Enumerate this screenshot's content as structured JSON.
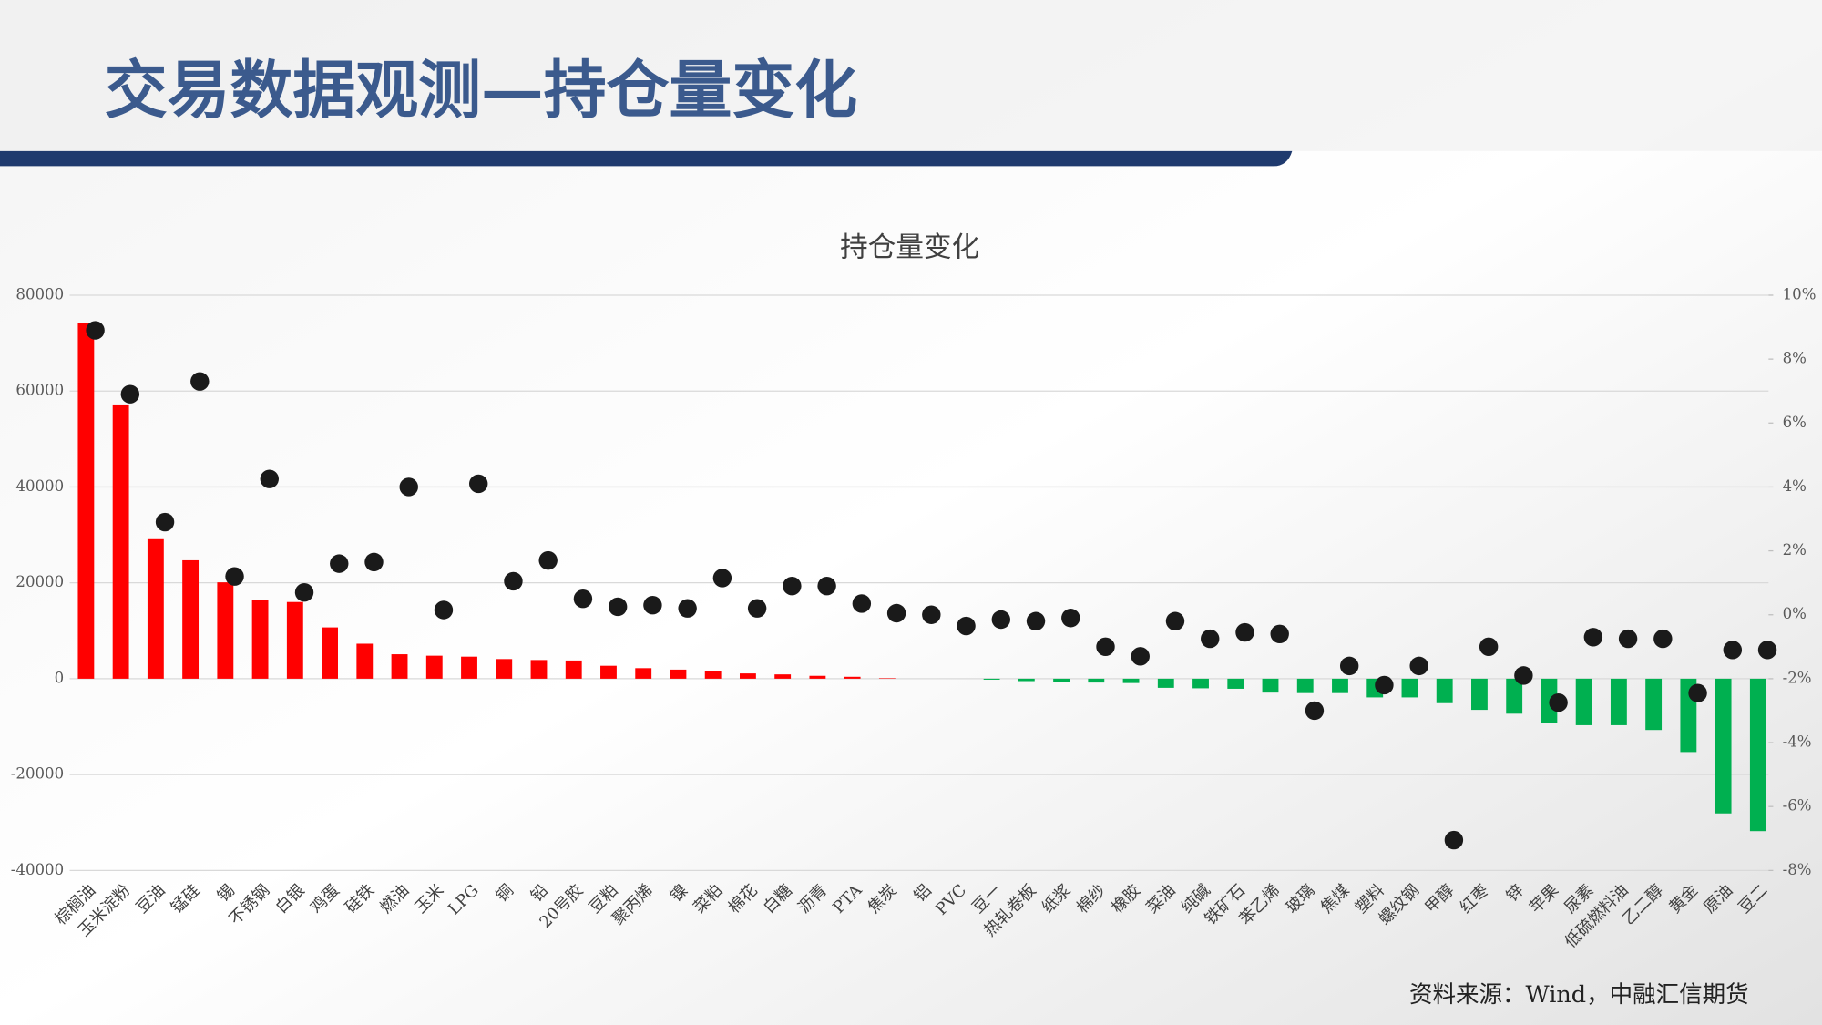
{
  "header": {
    "title": "交易数据观测—持仓量变化"
  },
  "chart_data": {
    "type": "bar-dot",
    "title": "持仓量变化",
    "categories": [
      "棕榈油",
      "玉米淀粉",
      "豆油",
      "锰硅",
      "锡",
      "不锈钢",
      "白银",
      "鸡蛋",
      "硅铁",
      "燃油",
      "玉米",
      "LPG",
      "铜",
      "铅",
      "20号胶",
      "豆粕",
      "聚丙烯",
      "镍",
      "菜粕",
      "棉花",
      "白糖",
      "沥青",
      "PTA",
      "焦炭",
      "铝",
      "PVC",
      "豆一",
      "热轧卷板",
      "纸浆",
      "棉纱",
      "橡胶",
      "菜油",
      "纯碱",
      "铁矿石",
      "苯乙烯",
      "玻璃",
      "焦煤",
      "塑料",
      "螺纹钢",
      "甲醇",
      "红枣",
      "锌",
      "苹果",
      "尿素",
      "低硫燃料油",
      "乙二醇",
      "黄金",
      "原油",
      "豆二"
    ],
    "series": [
      {
        "type": "bar",
        "color": "#ff0000",
        "negative_color": "#00b050",
        "values": [
          74200,
          57200,
          29100,
          24700,
          20100,
          16500,
          16000,
          10700,
          7300,
          5100,
          4800,
          4600,
          4100,
          3900,
          3800,
          2700,
          2200,
          1900,
          1500,
          1100,
          900,
          600,
          400,
          100,
          0,
          0,
          -200,
          -500,
          -700,
          -800,
          -900,
          -1900,
          -2000,
          -2100,
          -2900,
          -3000,
          -3000,
          -3900,
          -3900,
          -5100,
          -6500,
          -7300,
          -9200,
          -9700,
          -9700,
          -10700,
          -15300,
          -28100,
          -31800
        ]
      },
      {
        "type": "scatter",
        "axis": "y2",
        "color": "#1a1a1a",
        "values": [
          8.9,
          6.9,
          2.9,
          7.3,
          1.2,
          4.25,
          0.7,
          1.6,
          1.65,
          4.0,
          0.15,
          4.1,
          1.05,
          1.7,
          0.5,
          0.25,
          0.3,
          0.2,
          1.15,
          0.2,
          0.9,
          0.9,
          0.35,
          0.05,
          0,
          -0.35,
          -0.15,
          -0.2,
          -0.1,
          -1.0,
          -1.3,
          -0.2,
          -0.75,
          -0.55,
          -0.6,
          -3.0,
          -1.6,
          -2.2,
          -1.6,
          -7.05,
          -1.0,
          -1.9,
          -2.75,
          -0.7,
          -0.75,
          -0.75,
          -2.45,
          -1.1,
          -1.1
        ]
      }
    ],
    "ylim": [
      -40000,
      80000
    ],
    "yticks": [
      -40000,
      -20000,
      0,
      20000,
      40000,
      60000,
      80000
    ],
    "y2lim": [
      -8,
      10
    ],
    "y2ticks": [
      {
        "value": -8,
        "label": "-8%"
      },
      {
        "value": -6,
        "label": "-6%"
      },
      {
        "value": -4,
        "label": "-4%"
      },
      {
        "value": -2,
        "label": "-2%"
      },
      {
        "value": 0,
        "label": "0%"
      },
      {
        "value": 2,
        "label": "2%"
      },
      {
        "value": 4,
        "label": "4%"
      },
      {
        "value": 6,
        "label": "6%"
      },
      {
        "value": 8,
        "label": "8%"
      },
      {
        "value": 10,
        "label": "10%"
      }
    ],
    "grid": true
  },
  "footer": {
    "source": "资料来源：Wind，中融汇信期货"
  }
}
